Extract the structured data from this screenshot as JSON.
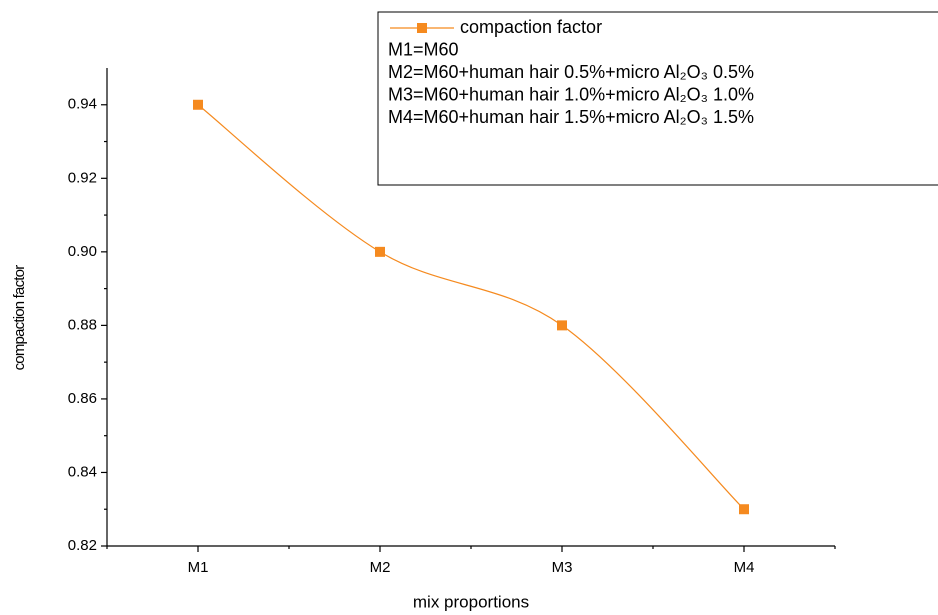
{
  "chart_data": {
    "type": "line",
    "xlabel": "mix proportions",
    "ylabel": "compaction factor",
    "categories": [
      "M1",
      "M2",
      "M3",
      "M4"
    ],
    "series": [
      {
        "name": "compaction factor",
        "color": "#f58a1f",
        "values": [
          0.94,
          0.9,
          0.88,
          0.83
        ]
      }
    ],
    "ylim": [
      0.82,
      0.95
    ],
    "yticks": [
      0.82,
      0.84,
      0.86,
      0.88,
      0.9,
      0.92,
      0.94
    ],
    "yticks_labels": [
      "0.82",
      "0.84",
      "0.86",
      "0.88",
      "0.90",
      "0.92",
      "0.94"
    ],
    "legend_notes": [
      "M1=M60",
      "M2=M60+human hair 0.5%+micro Al₂O₃ 0.5%",
      "M3=M60+human hair 1.0%+micro Al₂O₃ 1.0%",
      "M4=M60+human hair 1.5%+micro Al₂O₃ 1.5%"
    ],
    "legend": "upper right",
    "smooth": true
  }
}
